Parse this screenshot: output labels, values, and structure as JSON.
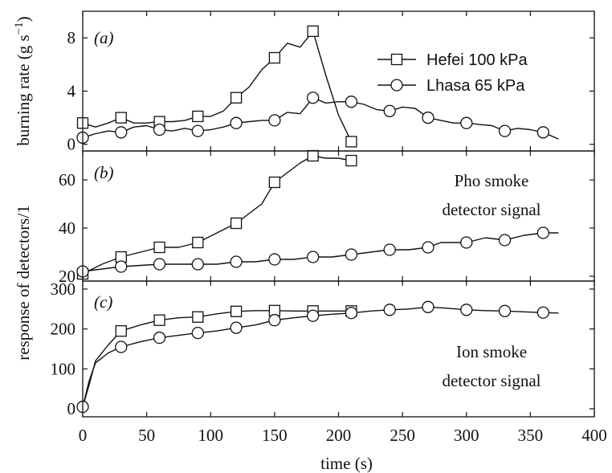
{
  "chart_data": {
    "type": "line",
    "x_axis": {
      "label": "time (s)",
      "range": [
        0,
        400
      ],
      "ticks": [
        0,
        50,
        100,
        150,
        200,
        250,
        300,
        350,
        400
      ]
    },
    "legend": {
      "placement": "top-right of panel (a)",
      "entries": [
        {
          "label": "Hefei 100 kPa",
          "marker": "square"
        },
        {
          "label": "Lhasa 65 kPa",
          "marker": "circle"
        }
      ]
    },
    "shared_y_label": "response of detectors/1",
    "panels": [
      {
        "id": "a",
        "letter": "(a)",
        "ylabel_main": "burning rate (g s",
        "ylabel_sup": "−1",
        "ylabel_close": ")",
        "ylim": [
          -0.5,
          10
        ],
        "yticks": [
          0,
          4,
          8
        ],
        "annotation": [],
        "series": [
          {
            "name": "Hefei 100 kPa",
            "marker": "square",
            "line": [
              [
                0,
                1.6
              ],
              [
                10,
                1.3
              ],
              [
                20,
                1.6
              ],
              [
                30,
                2.0
              ],
              [
                40,
                1.6
              ],
              [
                50,
                1.6
              ],
              [
                60,
                1.7
              ],
              [
                70,
                1.7
              ],
              [
                80,
                1.8
              ],
              [
                90,
                2.1
              ],
              [
                100,
                2.1
              ],
              [
                110,
                2.5
              ],
              [
                120,
                3.5
              ],
              [
                130,
                4.3
              ],
              [
                140,
                5.6
              ],
              [
                150,
                6.5
              ],
              [
                160,
                7.6
              ],
              [
                170,
                7.3
              ],
              [
                180,
                8.5
              ],
              [
                190,
                5.2
              ],
              [
                200,
                2.2
              ],
              [
                210,
                0.2
              ]
            ],
            "markers": [
              [
                0,
                1.6
              ],
              [
                30,
                2.0
              ],
              [
                60,
                1.7
              ],
              [
                90,
                2.1
              ],
              [
                120,
                3.5
              ],
              [
                150,
                6.5
              ],
              [
                180,
                8.5
              ],
              [
                210,
                0.2
              ]
            ]
          },
          {
            "name": "Lhasa 65 kPa",
            "marker": "circle",
            "line": [
              [
                0,
                0.5
              ],
              [
                10,
                0.8
              ],
              [
                20,
                1.0
              ],
              [
                30,
                0.9
              ],
              [
                40,
                1.3
              ],
              [
                50,
                1.4
              ],
              [
                60,
                1.1
              ],
              [
                70,
                1.0
              ],
              [
                80,
                1.2
              ],
              [
                90,
                1.0
              ],
              [
                100,
                1.1
              ],
              [
                110,
                1.3
              ],
              [
                120,
                1.6
              ],
              [
                130,
                1.7
              ],
              [
                140,
                1.8
              ],
              [
                150,
                1.8
              ],
              [
                160,
                2.4
              ],
              [
                170,
                2.3
              ],
              [
                180,
                3.5
              ],
              [
                190,
                3.1
              ],
              [
                200,
                3.2
              ],
              [
                210,
                3.2
              ],
              [
                220,
                3.0
              ],
              [
                230,
                2.6
              ],
              [
                240,
                2.5
              ],
              [
                250,
                2.8
              ],
              [
                260,
                2.7
              ],
              [
                270,
                2.0
              ],
              [
                280,
                1.8
              ],
              [
                290,
                1.6
              ],
              [
                300,
                1.6
              ],
              [
                310,
                1.5
              ],
              [
                320,
                1.4
              ],
              [
                330,
                1.0
              ],
              [
                340,
                1.2
              ],
              [
                350,
                1.1
              ],
              [
                360,
                0.9
              ],
              [
                372,
                0.4
              ]
            ],
            "markers": [
              [
                0,
                0.5
              ],
              [
                30,
                0.9
              ],
              [
                60,
                1.1
              ],
              [
                90,
                1.0
              ],
              [
                120,
                1.6
              ],
              [
                150,
                1.8
              ],
              [
                180,
                3.5
              ],
              [
                210,
                3.2
              ],
              [
                240,
                2.5
              ],
              [
                270,
                2.0
              ],
              [
                300,
                1.6
              ],
              [
                330,
                1.0
              ],
              [
                360,
                0.9
              ]
            ]
          }
        ]
      },
      {
        "id": "b",
        "letter": "(b)",
        "ylim": [
          18,
          72
        ],
        "yticks": [
          20,
          40,
          60
        ],
        "annotation": [
          "Pho smoke",
          "detector signal"
        ],
        "series": [
          {
            "name": "Hefei 100 kPa",
            "marker": "square",
            "line": [
              [
                0,
                21
              ],
              [
                15,
                25
              ],
              [
                30,
                28
              ],
              [
                45,
                30
              ],
              [
                60,
                32
              ],
              [
                75,
                32
              ],
              [
                90,
                34
              ],
              [
                105,
                38
              ],
              [
                120,
                42
              ],
              [
                130,
                46
              ],
              [
                140,
                50
              ],
              [
                150,
                59
              ],
              [
                160,
                63
              ],
              [
                170,
                67
              ],
              [
                180,
                70
              ],
              [
                190,
                69
              ],
              [
                200,
                69
              ],
              [
                210,
                68
              ]
            ],
            "markers": [
              [
                0,
                21
              ],
              [
                30,
                28
              ],
              [
                60,
                32
              ],
              [
                90,
                34
              ],
              [
                120,
                42
              ],
              [
                150,
                59
              ],
              [
                180,
                70
              ],
              [
                210,
                68
              ]
            ]
          },
          {
            "name": "Lhasa 65 kPa",
            "marker": "circle",
            "line": [
              [
                0,
                22
              ],
              [
                15,
                23
              ],
              [
                30,
                24
              ],
              [
                60,
                25
              ],
              [
                90,
                25
              ],
              [
                105,
                25
              ],
              [
                120,
                26
              ],
              [
                135,
                26
              ],
              [
                150,
                27
              ],
              [
                165,
                27
              ],
              [
                180,
                28
              ],
              [
                195,
                28
              ],
              [
                210,
                29
              ],
              [
                225,
                30
              ],
              [
                240,
                31
              ],
              [
                255,
                31
              ],
              [
                270,
                32
              ],
              [
                280,
                34
              ],
              [
                290,
                34
              ],
              [
                300,
                34
              ],
              [
                315,
                36
              ],
              [
                330,
                35
              ],
              [
                345,
                37
              ],
              [
                360,
                38
              ],
              [
                372,
                38
              ]
            ],
            "markers": [
              [
                0,
                22
              ],
              [
                30,
                24
              ],
              [
                60,
                25
              ],
              [
                90,
                25
              ],
              [
                120,
                26
              ],
              [
                150,
                27
              ],
              [
                180,
                28
              ],
              [
                210,
                29
              ],
              [
                240,
                31
              ],
              [
                270,
                32
              ],
              [
                300,
                34
              ],
              [
                330,
                35
              ],
              [
                360,
                38
              ]
            ]
          }
        ]
      },
      {
        "id": "c",
        "letter": "(c)",
        "ylim": [
          -20,
          320
        ],
        "yticks": [
          0,
          100,
          200,
          300
        ],
        "annotation": [
          "Ion smoke",
          "detector signal"
        ],
        "series": [
          {
            "name": "Hefei 100 kPa",
            "marker": "square",
            "line": [
              [
                0,
                5
              ],
              [
                5,
                60
              ],
              [
                10,
                120
              ],
              [
                20,
                160
              ],
              [
                30,
                195
              ],
              [
                45,
                210
              ],
              [
                60,
                222
              ],
              [
                75,
                228
              ],
              [
                90,
                230
              ],
              [
                105,
                238
              ],
              [
                120,
                244
              ],
              [
                135,
                246
              ],
              [
                150,
                246
              ],
              [
                165,
                245
              ],
              [
                180,
                245
              ],
              [
                195,
                245
              ],
              [
                210,
                245
              ]
            ],
            "markers": [
              [
                30,
                195
              ],
              [
                60,
                222
              ],
              [
                90,
                230
              ],
              [
                120,
                244
              ],
              [
                150,
                246
              ],
              [
                180,
                245
              ],
              [
                210,
                245
              ]
            ]
          },
          {
            "name": "Lhasa 65 kPa",
            "marker": "circle",
            "line": [
              [
                0,
                5
              ],
              [
                5,
                70
              ],
              [
                10,
                115
              ],
              [
                20,
                140
              ],
              [
                30,
                155
              ],
              [
                45,
                168
              ],
              [
                60,
                178
              ],
              [
                75,
                184
              ],
              [
                90,
                190
              ],
              [
                105,
                195
              ],
              [
                120,
                203
              ],
              [
                135,
                210
              ],
              [
                150,
                222
              ],
              [
                165,
                228
              ],
              [
                180,
                233
              ],
              [
                195,
                237
              ],
              [
                210,
                240
              ],
              [
                225,
                245
              ],
              [
                240,
                248
              ],
              [
                255,
                250
              ],
              [
                270,
                255
              ],
              [
                285,
                252
              ],
              [
                300,
                248
              ],
              [
                315,
                246
              ],
              [
                330,
                245
              ],
              [
                345,
                243
              ],
              [
                360,
                241
              ],
              [
                372,
                240
              ]
            ],
            "markers": [
              [
                0,
                5
              ],
              [
                30,
                155
              ],
              [
                60,
                178
              ],
              [
                90,
                190
              ],
              [
                120,
                203
              ],
              [
                150,
                222
              ],
              [
                180,
                233
              ],
              [
                210,
                240
              ],
              [
                240,
                248
              ],
              [
                270,
                255
              ],
              [
                300,
                248
              ],
              [
                330,
                245
              ],
              [
                360,
                241
              ]
            ]
          }
        ]
      }
    ]
  }
}
